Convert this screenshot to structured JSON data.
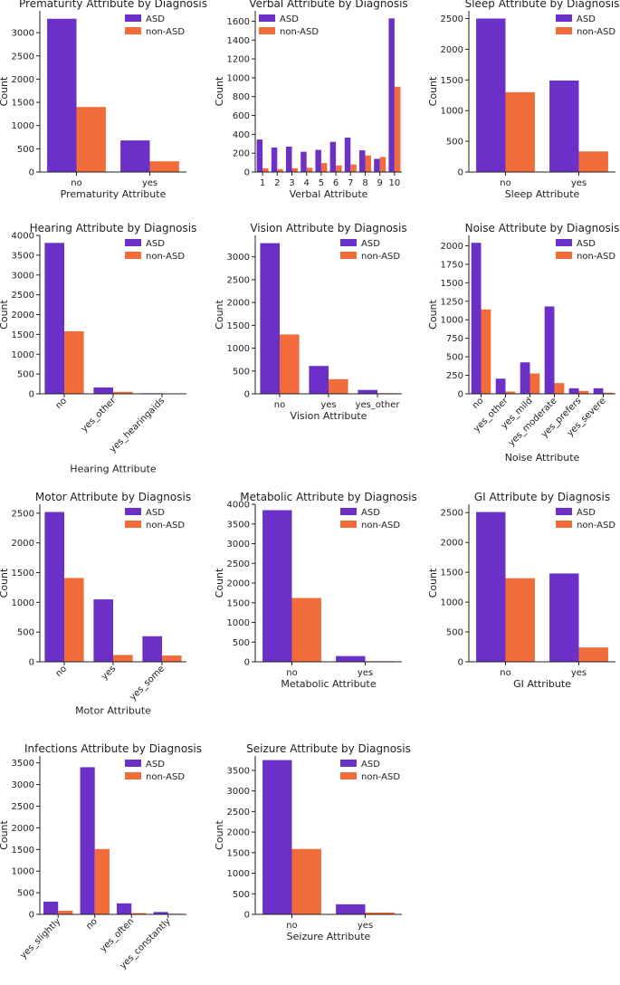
{
  "figure": {
    "legend_labels": [
      "ASD",
      "non-ASD"
    ],
    "series_colors": {
      "ASD": "#6a30c8",
      "non-ASD": "#f26b3a"
    }
  },
  "chart_data": [
    {
      "type": "bar",
      "title": "Prematurity Attribute by Diagnosis",
      "xlabel": "Prematurity Attribute",
      "ylabel": "Count",
      "categories": [
        "no",
        "yes"
      ],
      "series": [
        {
          "name": "ASD",
          "values": [
            3300,
            680
          ]
        },
        {
          "name": "non-ASD",
          "values": [
            1400,
            230
          ]
        }
      ],
      "yticks": [
        0,
        500,
        1000,
        1500,
        2000,
        2500,
        3000
      ],
      "ylim": [
        0,
        3470
      ],
      "rotate_xticks": false,
      "legend": "top-right"
    },
    {
      "type": "bar",
      "title": "Verbal Attribute by Diagnosis",
      "xlabel": "Verbal Attribute",
      "ylabel": "Count",
      "categories": [
        "1",
        "2",
        "3",
        "4",
        "5",
        "6",
        "7",
        "8",
        "9",
        "10"
      ],
      "series": [
        {
          "name": "ASD",
          "values": [
            345,
            260,
            270,
            215,
            235,
            320,
            365,
            230,
            140,
            1630
          ]
        },
        {
          "name": "non-ASD",
          "values": [
            40,
            30,
            40,
            45,
            95,
            70,
            80,
            175,
            160,
            905
          ]
        }
      ],
      "yticks": [
        0,
        200,
        400,
        600,
        800,
        1000,
        1200,
        1400,
        1600
      ],
      "ylim": [
        0,
        1710
      ],
      "rotate_xticks": false,
      "legend": "top-left"
    },
    {
      "type": "bar",
      "title": "Sleep Attribute by Diagnosis",
      "xlabel": "Sleep Attribute",
      "ylabel": "Count",
      "categories": [
        "no",
        "yes"
      ],
      "series": [
        {
          "name": "ASD",
          "values": [
            2500,
            1490
          ]
        },
        {
          "name": "non-ASD",
          "values": [
            1300,
            335
          ]
        }
      ],
      "yticks": [
        0,
        500,
        1000,
        1500,
        2000,
        2500
      ],
      "ylim": [
        0,
        2625
      ],
      "rotate_xticks": false,
      "legend": "top-right"
    },
    {
      "type": "bar",
      "title": "Hearing Attribute by Diagnosis",
      "xlabel": "Hearing Attribute",
      "ylabel": "Count",
      "categories": [
        "no",
        "yes_other",
        "yes_hearingaids"
      ],
      "series": [
        {
          "name": "ASD",
          "values": [
            3810,
            160,
            15
          ]
        },
        {
          "name": "non-ASD",
          "values": [
            1580,
            50,
            5
          ]
        }
      ],
      "yticks": [
        0,
        500,
        1000,
        1500,
        2000,
        2500,
        3000,
        3500,
        4000
      ],
      "ylim": [
        0,
        4000
      ],
      "rotate_xticks": true,
      "legend": "top-right"
    },
    {
      "type": "bar",
      "title": "Vision Attribute by Diagnosis",
      "xlabel": "Vision Attribute",
      "ylabel": "Count",
      "categories": [
        "no",
        "yes",
        "yes_other"
      ],
      "series": [
        {
          "name": "ASD",
          "values": [
            3300,
            610,
            85
          ]
        },
        {
          "name": "non-ASD",
          "values": [
            1300,
            320,
            15
          ]
        }
      ],
      "yticks": [
        0,
        500,
        1000,
        1500,
        2000,
        2500,
        3000
      ],
      "ylim": [
        0,
        3470
      ],
      "rotate_xticks": false,
      "legend": "top-right"
    },
    {
      "type": "bar",
      "title": "Noise Attribute by Diagnosis",
      "xlabel": "Noise Attribute",
      "ylabel": "Count",
      "categories": [
        "no",
        "yes_other",
        "yes_mild",
        "yes_moderate",
        "yes_prefers",
        "yes_severe"
      ],
      "series": [
        {
          "name": "ASD",
          "values": [
            2040,
            205,
            425,
            1180,
            75,
            75
          ]
        },
        {
          "name": "non-ASD",
          "values": [
            1140,
            30,
            275,
            145,
            40,
            15
          ]
        }
      ],
      "yticks": [
        0,
        250,
        500,
        750,
        1000,
        1250,
        1500,
        1750,
        2000
      ],
      "ylim": [
        0,
        2140
      ],
      "rotate_xticks": true,
      "legend": "top-right"
    },
    {
      "type": "bar",
      "title": "Motor Attribute by Diagnosis",
      "xlabel": "Motor Attribute",
      "ylabel": "Count",
      "categories": [
        "no",
        "yes",
        "yes_some"
      ],
      "series": [
        {
          "name": "ASD",
          "values": [
            2520,
            1050,
            430
          ]
        },
        {
          "name": "non-ASD",
          "values": [
            1410,
            115,
            105
          ]
        }
      ],
      "yticks": [
        0,
        500,
        1000,
        1500,
        2000,
        2500
      ],
      "ylim": [
        0,
        2650
      ],
      "rotate_xticks": true,
      "legend": "top-right"
    },
    {
      "type": "bar",
      "title": "Metabolic Attribute by Diagnosis",
      "xlabel": "Metabolic Attribute",
      "ylabel": "Count",
      "categories": [
        "no",
        "yes"
      ],
      "series": [
        {
          "name": "ASD",
          "values": [
            3850,
            145
          ]
        },
        {
          "name": "non-ASD",
          "values": [
            1620,
            15
          ]
        }
      ],
      "yticks": [
        0,
        500,
        1000,
        1500,
        2000,
        2500,
        3000,
        3500,
        4000
      ],
      "ylim": [
        0,
        4000
      ],
      "rotate_xticks": false,
      "legend": "top-right"
    },
    {
      "type": "bar",
      "title": "GI Attribute by Diagnosis",
      "xlabel": "GI Attribute",
      "ylabel": "Count",
      "categories": [
        "no",
        "yes"
      ],
      "series": [
        {
          "name": "ASD",
          "values": [
            2510,
            1480
          ]
        },
        {
          "name": "non-ASD",
          "values": [
            1400,
            240
          ]
        }
      ],
      "yticks": [
        0,
        500,
        1000,
        1500,
        2000,
        2500
      ],
      "ylim": [
        0,
        2640
      ],
      "rotate_xticks": false,
      "legend": "top-right"
    },
    {
      "type": "bar",
      "title": "Infections Attribute by Diagnosis",
      "xlabel": "Infections Attribute",
      "ylabel": "Count",
      "categories": [
        "yes_slightly",
        "no",
        "yes_often",
        "yes_constantly"
      ],
      "series": [
        {
          "name": "ASD",
          "values": [
            295,
            3400,
            255,
            55
          ]
        },
        {
          "name": "non-ASD",
          "values": [
            85,
            1510,
            30,
            15
          ]
        }
      ],
      "yticks": [
        0,
        500,
        1000,
        1500,
        2000,
        2500,
        3000,
        3500
      ],
      "ylim": [
        0,
        3660
      ],
      "rotate_xticks": true,
      "legend": "top-right"
    },
    {
      "type": "bar",
      "title": "Seizure Attribute by Diagnosis",
      "xlabel": "Seizure Attribute",
      "ylabel": "Count",
      "categories": [
        "no",
        "yes"
      ],
      "series": [
        {
          "name": "ASD",
          "values": [
            3750,
            245
          ]
        },
        {
          "name": "non-ASD",
          "values": [
            1590,
            45
          ]
        }
      ],
      "yticks": [
        0,
        500,
        1000,
        1500,
        2000,
        2500,
        3000,
        3500
      ],
      "ylim": [
        0,
        3850
      ],
      "rotate_xticks": false,
      "legend": "top-right"
    }
  ]
}
